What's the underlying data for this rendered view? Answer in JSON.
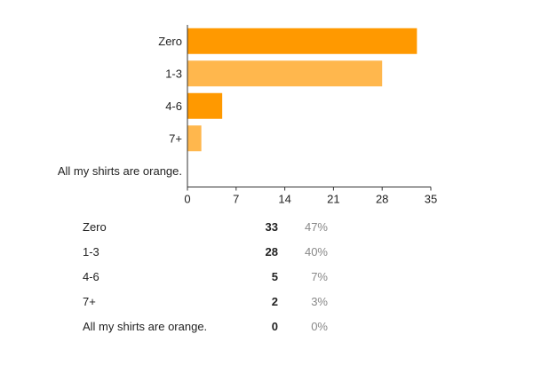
{
  "chart_data": {
    "type": "bar",
    "orientation": "horizontal",
    "categories": [
      "Zero",
      "1-3",
      "4-6",
      "7+",
      "All my shirts are orange."
    ],
    "values": [
      33,
      28,
      5,
      2,
      0
    ],
    "xlim": [
      0,
      35
    ],
    "xticks": [
      0,
      7,
      14,
      21,
      28,
      35
    ],
    "grid": false,
    "colors": [
      "#ff9900",
      "#ffb74d",
      "#ff9900",
      "#ffb74d",
      "#ff9900"
    ]
  },
  "summary": [
    {
      "label": "Zero",
      "count": "33",
      "percent": "47%"
    },
    {
      "label": "1-3",
      "count": "28",
      "percent": "40%"
    },
    {
      "label": "4-6",
      "count": "5",
      "percent": "7%"
    },
    {
      "label": "7+",
      "count": "2",
      "percent": "3%"
    },
    {
      "label": "All my shirts are orange.",
      "count": "0",
      "percent": "0%"
    }
  ]
}
